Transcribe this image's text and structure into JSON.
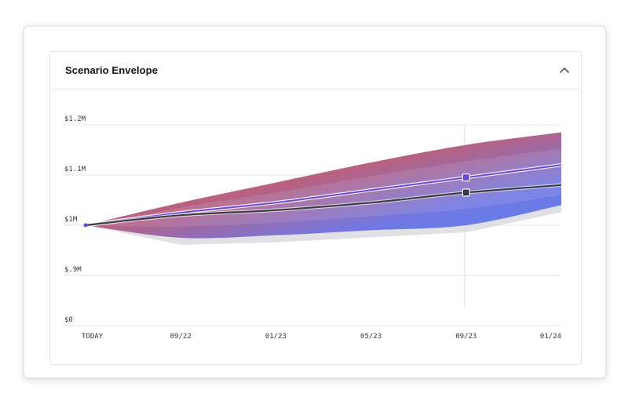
{
  "card": {
    "title": "Scenario Envelope",
    "collapse_icon": "chevron-up-icon"
  },
  "chart_data": {
    "type": "area",
    "title": "Scenario Envelope",
    "x_ticks": [
      "TODAY",
      "09/22",
      "01/23",
      "05/23",
      "09/23",
      "01/24"
    ],
    "y_ticks": [
      "$0",
      "$.9M",
      "$1M",
      "$1.1M",
      "$1.2M"
    ],
    "y_tick_values": [
      0,
      0.9,
      1.0,
      1.1,
      1.2
    ],
    "y_scale": "broken (non-linear spacing between $0 and $.9M)",
    "grid": "horizontal",
    "marker_date": "09/23",
    "x": [
      "TODAY",
      "09/22",
      "01/23",
      "05/23",
      "09/23",
      "01/24"
    ],
    "series": [
      {
        "values": [
          1.0,
          1.02,
          1.03,
          1.045,
          1.065,
          1.08
        ]
      },
      {
        "values": [
          1.0,
          1.025,
          1.045,
          1.07,
          1.095,
          1.12
        ]
      }
    ],
    "band_upper": [
      1.0,
      1.045,
      1.085,
      1.125,
      1.16,
      1.185
    ],
    "band_lower": [
      1.0,
      0.975,
      0.98,
      0.99,
      1.0,
      1.04
    ],
    "colors": {
      "base": "#3a3c42",
      "upside": "#6b47dc",
      "band_warm": "#e2684b",
      "band_cool": "#5f80ee",
      "band_shadow": "#d6d6dc",
      "grid": "#e3e4e7"
    }
  }
}
